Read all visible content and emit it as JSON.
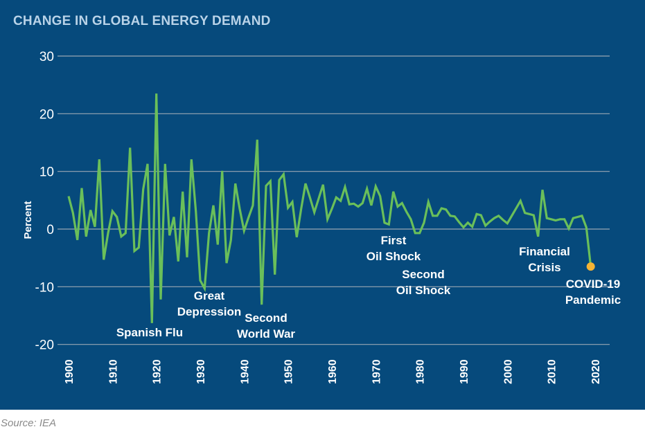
{
  "chart_data": {
    "type": "line",
    "title": "CHANGE IN GLOBAL ENERGY DEMAND",
    "xlabel": "",
    "ylabel": "Percent",
    "xlim": [
      1900,
      2020
    ],
    "ylim": [
      -20,
      30
    ],
    "yticks": [
      30,
      20,
      10,
      0,
      -10,
      -20
    ],
    "xticks": [
      1900,
      1910,
      1920,
      1930,
      1940,
      1950,
      1960,
      1970,
      1980,
      1990,
      2000,
      2010,
      2020
    ],
    "grid": "horizontal",
    "line_color": "#6abf5a",
    "highlight_color": "#f5b335",
    "x_start": 1900,
    "values": [
      5.7,
      2.8,
      -1.9,
      7.1,
      -1.3,
      3.3,
      0.4,
      12.1,
      -5.3,
      -0.7,
      3.1,
      2.1,
      -1.3,
      -0.7,
      14.1,
      -3.8,
      -3.2,
      6.9,
      11.3,
      -16.3,
      23.5,
      -12.2,
      11.3,
      -1.1,
      2.1,
      -5.6,
      6.5,
      -4.9,
      12.1,
      3.1,
      -8.9,
      -10.3,
      -0.7,
      4.1,
      -2.7,
      10.1,
      -5.9,
      -1.9,
      7.9,
      3.5,
      -0.3,
      2.0,
      4.1,
      15.5,
      -13.1,
      7.5,
      8.3,
      -7.9,
      8.5,
      9.5,
      3.7,
      4.7,
      -1.4,
      3.5,
      7.9,
      5.5,
      2.9,
      5.3,
      7.7,
      1.7,
      3.5,
      5.5,
      4.9,
      7.3,
      4.3,
      4.4,
      3.9,
      4.5,
      7.0,
      4.1,
      7.4,
      5.7,
      1.1,
      0.8,
      6.5,
      3.9,
      4.5,
      3.0,
      1.7,
      -0.7,
      -0.7,
      1.1,
      4.7,
      2.3,
      2.3,
      3.6,
      3.4,
      2.3,
      2.2,
      1.2,
      0.3,
      1.1,
      0.4,
      2.6,
      2.4,
      0.6,
      1.3,
      1.9,
      2.3,
      1.6,
      1.0,
      2.3,
      3.6,
      4.9,
      2.8,
      2.6,
      2.4,
      -1.3,
      6.8,
      1.9,
      1.7,
      1.5,
      1.7,
      1.7,
      0.1,
      1.9,
      2.1,
      2.3,
      0.3,
      -6.5
    ],
    "annotations": [
      {
        "lines": [
          "Spanish Flu"
        ],
        "year": 1919
      },
      {
        "lines": [
          "Great",
          "Depression"
        ],
        "year": 1932
      },
      {
        "lines": [
          "Second",
          "World War"
        ],
        "year": 1945
      },
      {
        "lines": [
          "First",
          "Oil Shock"
        ],
        "year": 1973
      },
      {
        "lines": [
          "Second",
          "Oil Shock"
        ],
        "year": 1980
      },
      {
        "lines": [
          "Financial",
          "Crisis"
        ],
        "year": 2008
      },
      {
        "lines": [
          "COVID-19",
          "Pandemic"
        ],
        "year": 2020
      }
    ],
    "source": "Source: IEA"
  }
}
